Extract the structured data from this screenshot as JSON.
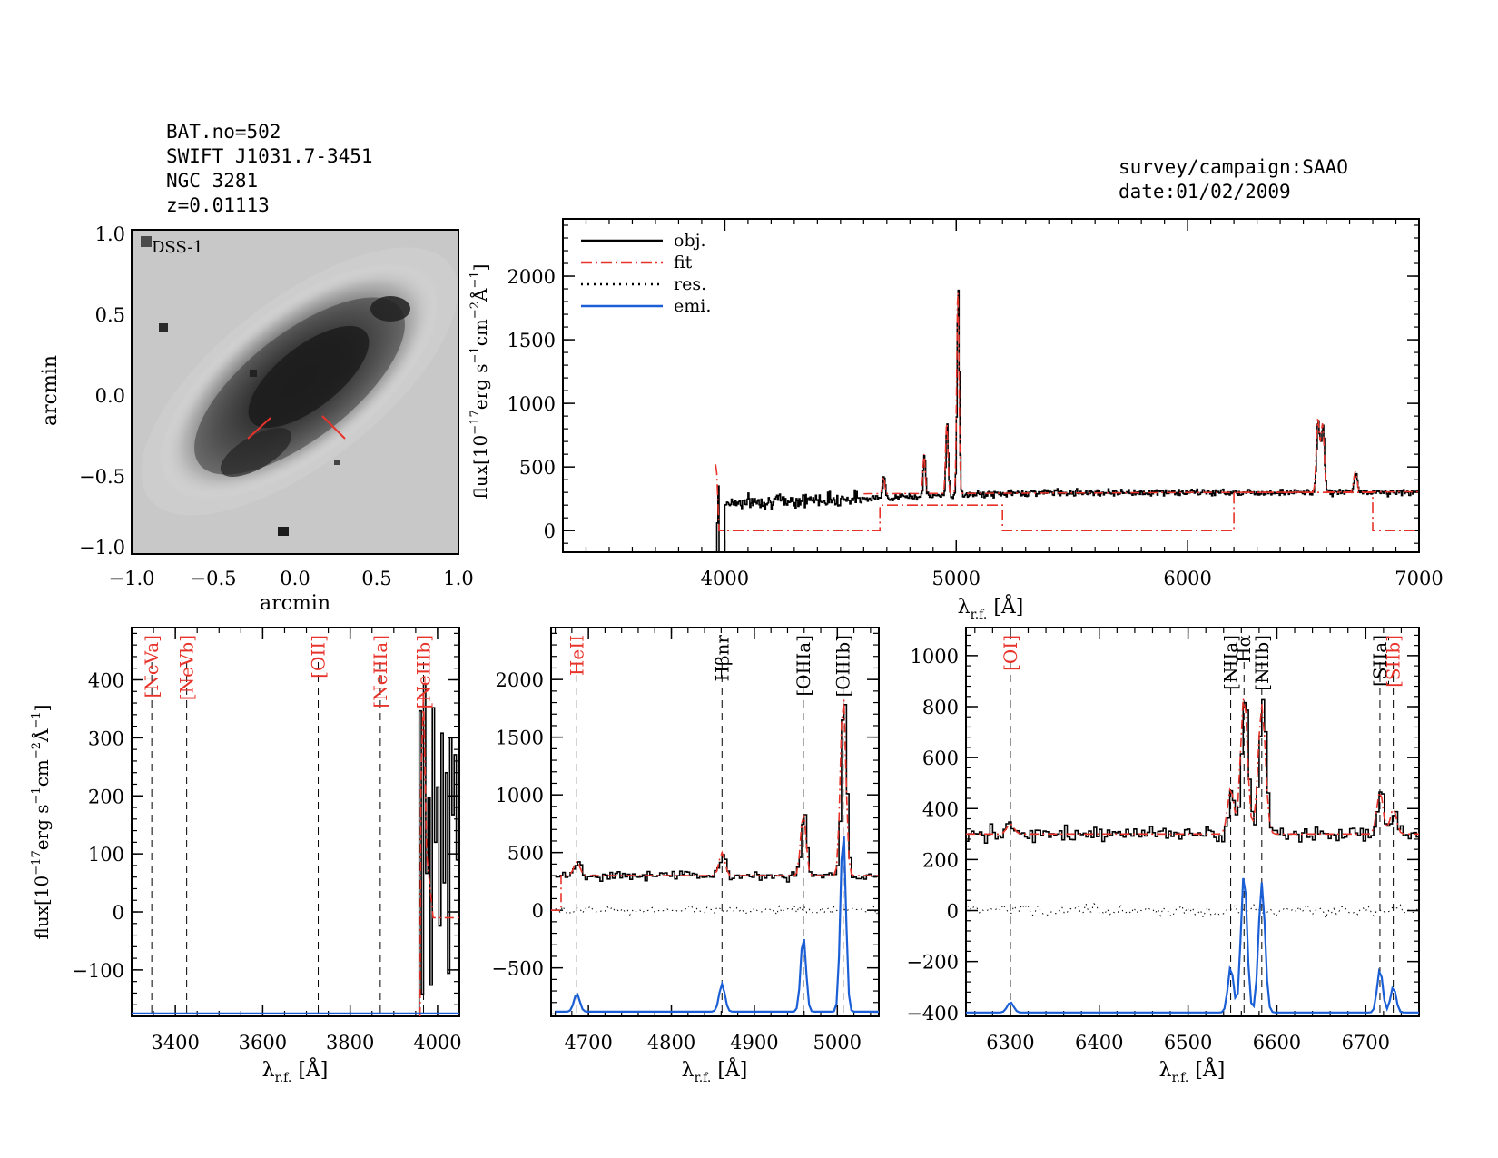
{
  "header": {
    "bat_no": "BAT.no=502",
    "swift_id": "SWIFT J1031.7-3451",
    "galaxy": "NGC 3281",
    "redshift": "z=0.01113",
    "survey": "survey/campaign:SAAO",
    "date": "date:01/02/2009"
  },
  "image_panel": {
    "label": "DSS-1",
    "xlabel": "arcmin",
    "ylabel": "arcmin",
    "xticks": [
      "−1.0",
      "−0.5",
      "0.0",
      "0.5",
      "1.0"
    ],
    "yticks": [
      "1.0",
      "0.5",
      "0.0",
      "−0.5",
      "−1.0"
    ]
  },
  "colors": {
    "obj": "#000000",
    "fit": "#e8332a",
    "emi": "#1a5fd6",
    "line_label_red": "#e8332a"
  },
  "chart_data": [
    {
      "type": "line",
      "panel": "full-spectrum",
      "title": "",
      "xlabel": "λr.f. [Å]",
      "ylabel": "flux[10⁻¹⁷erg s⁻¹cm⁻²Å⁻¹]",
      "xlim": [
        3300,
        7000
      ],
      "ylim": [
        -170,
        2450
      ],
      "xticks": [
        4000,
        5000,
        6000,
        7000
      ],
      "yticks": [
        0,
        500,
        1000,
        1500,
        2000
      ],
      "legend": {
        "placement": "top-left",
        "entries": [
          "obj.",
          "fit",
          "res.",
          "emi."
        ]
      },
      "continuum": {
        "start": 4000,
        "level_start": 220,
        "level_end": 300
      },
      "peaks": [
        {
          "x": 3965,
          "y": 500
        },
        {
          "x": 4686,
          "y": 420
        },
        {
          "x": 4861,
          "y": 600
        },
        {
          "x": 4959,
          "y": 850
        },
        {
          "x": 5007,
          "y": 1900
        },
        {
          "x": 6563,
          "y": 860
        },
        {
          "x": 6583,
          "y": 820
        },
        {
          "x": 6725,
          "y": 450
        }
      ],
      "series": [
        {
          "name": "obj."
        },
        {
          "name": "fit",
          "x": [
            3960,
            3965,
            3975,
            4000,
            4670,
            4670,
            5200,
            5200,
            6200,
            6200,
            6800,
            6800,
            7000
          ],
          "y": [
            520,
            450,
            0,
            0,
            0,
            200,
            200,
            0,
            0,
            300,
            300,
            0,
            0
          ]
        }
      ]
    },
    {
      "type": "line",
      "panel": "blue-window",
      "xlabel": "λr.f. [Å]",
      "ylabel": "flux[10⁻¹⁷erg s⁻¹cm⁻²Å⁻¹]",
      "xlim": [
        3300,
        4050
      ],
      "ylim": [
        -180,
        490
      ],
      "xticks": [
        3400,
        3600,
        3800,
        4000
      ],
      "yticks": [
        -100,
        0,
        100,
        200,
        300,
        400
      ],
      "emi_baseline": -175,
      "lines": [
        {
          "name": "[NeVa]",
          "x": 3346,
          "color": "red"
        },
        {
          "name": "[NeVb]",
          "x": 3426,
          "color": "red"
        },
        {
          "name": "[OII]",
          "x": 3727,
          "color": "red"
        },
        {
          "name": "[NeIIIa]",
          "x": 3869,
          "color": "red"
        },
        {
          "name": "[NeIIIb]",
          "x": 3968,
          "color": "red"
        }
      ]
    },
    {
      "type": "line",
      "panel": "hbeta-window",
      "xlabel": "λr.f. [Å]",
      "ylabel": "",
      "xlim": [
        4655,
        5050
      ],
      "ylim": [
        -920,
        2450
      ],
      "xticks": [
        4700,
        4800,
        4900,
        5000
      ],
      "yticks": [
        -500,
        0,
        500,
        1000,
        1500,
        2000
      ],
      "continuum": 300,
      "emi_baseline": -880,
      "lines": [
        {
          "name": "HeII",
          "x": 4686,
          "color": "red",
          "peak": 130,
          "width": 3.5
        },
        {
          "name": "Hβnr",
          "x": 4861,
          "color": "black",
          "peak": 200,
          "width": 3.5
        },
        {
          "name": "[OIIIa]",
          "x": 4959,
          "color": "black",
          "peak": 550,
          "width": 3.2
        },
        {
          "name": "[OIIIb]",
          "x": 5007,
          "color": "black",
          "peak": 1600,
          "width": 3.2
        }
      ]
    },
    {
      "type": "line",
      "panel": "halpha-window",
      "xlabel": "λr.f. [Å]",
      "ylabel": "",
      "xlim": [
        6250,
        6760
      ],
      "ylim": [
        -415,
        1110
      ],
      "xticks": [
        6300,
        6400,
        6500,
        6600,
        6700
      ],
      "yticks": [
        -400,
        -200,
        0,
        200,
        400,
        600,
        800,
        1000
      ],
      "continuum": 300,
      "emi_baseline": -400,
      "lines": [
        {
          "name": "[OI]",
          "x": 6300,
          "color": "red",
          "peak": 40,
          "width": 4
        },
        {
          "name": "[NIIa]",
          "x": 6548,
          "color": "black",
          "peak": 180,
          "width": 3.5
        },
        {
          "name": "Hα",
          "x": 6563,
          "color": "black",
          "peak": 550,
          "width": 3.8
        },
        {
          "name": "[NIIb]",
          "x": 6583,
          "color": "black",
          "peak": 510,
          "width": 4
        },
        {
          "name": "[SIIa]",
          "x": 6716,
          "color": "black",
          "peak": 170,
          "width": 3.5
        },
        {
          "name": "[SIIb]",
          "x": 6731,
          "color": "red",
          "peak": 100,
          "width": 3.5
        }
      ]
    }
  ]
}
